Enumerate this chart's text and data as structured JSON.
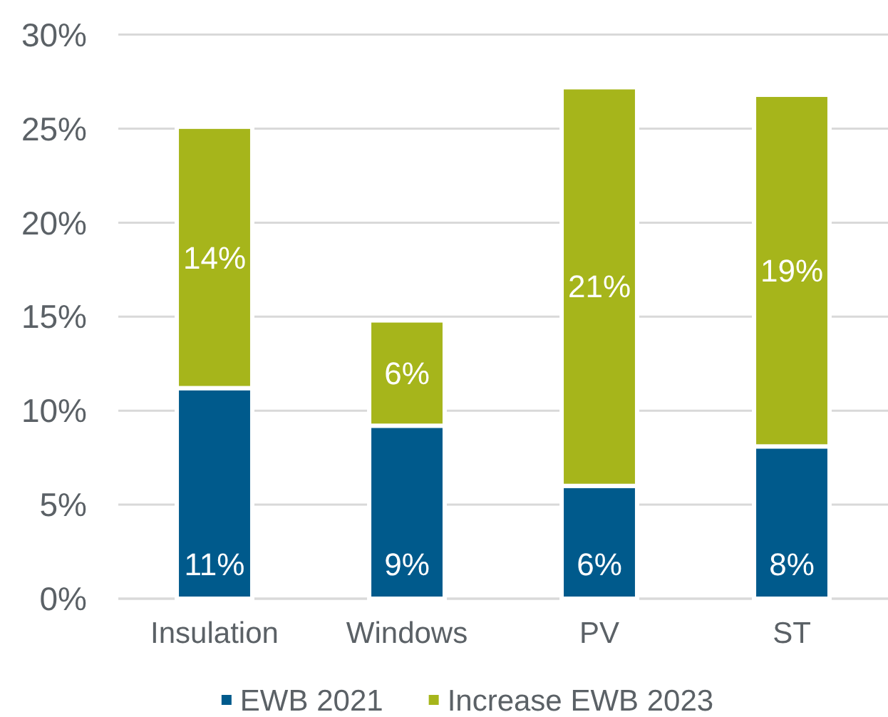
{
  "chart_data": {
    "type": "bar",
    "stacked": true,
    "categories": [
      "Insulation",
      "Windows",
      "PV",
      "ST"
    ],
    "series": [
      {
        "name": "EWB 2021",
        "color": "#005a8c",
        "values": [
          11.2,
          9.2,
          6.0,
          8.1
        ],
        "value_labels": [
          "11%",
          "9%",
          "6%",
          "8%"
        ]
      },
      {
        "name": "Increase EWB 2023",
        "color": "#a6b51b",
        "values": [
          13.9,
          5.6,
          21.2,
          18.7
        ],
        "value_labels": [
          "14%",
          "6%",
          "21%",
          "19%"
        ]
      }
    ],
    "ylim": [
      0,
      30
    ],
    "yticks": [
      {
        "value": 0,
        "label": "0%"
      },
      {
        "value": 5,
        "label": "5%"
      },
      {
        "value": 10,
        "label": "10%"
      },
      {
        "value": 15,
        "label": "15%"
      },
      {
        "value": 20,
        "label": "20%"
      },
      {
        "value": 25,
        "label": "25%"
      },
      {
        "value": 30,
        "label": "30%"
      }
    ],
    "grid": "y",
    "legend": "bottom"
  }
}
